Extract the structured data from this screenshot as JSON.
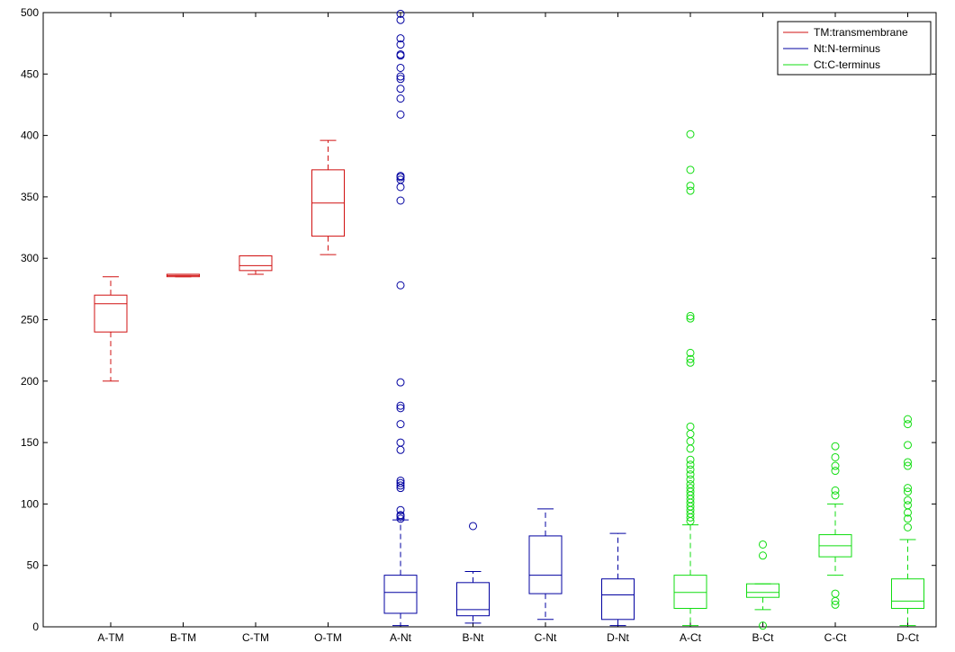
{
  "chart_data": {
    "type": "boxplot",
    "title": "",
    "xlabel": "",
    "ylabel": "",
    "ylim": [
      0,
      500
    ],
    "yticks": [
      0,
      50,
      100,
      150,
      200,
      250,
      300,
      350,
      400,
      450,
      500
    ],
    "grid": false,
    "legend_position": "top-right",
    "legend": [
      {
        "label": "TM:transmembrane",
        "color": "#d01010"
      },
      {
        "label": "Nt:N-terminus",
        "color": "#0000a0"
      },
      {
        "label": "Ct:C-terminus",
        "color": "#10dd10"
      }
    ],
    "categories": [
      "A-TM",
      "B-TM",
      "C-TM",
      "O-TM",
      "A-Nt",
      "B-Nt",
      "C-Nt",
      "D-Nt",
      "A-Ct",
      "B-Ct",
      "C-Ct",
      "D-Ct"
    ],
    "boxes": [
      {
        "group": "TM",
        "color": "#d01010",
        "whisker_low": 200,
        "q1": 240,
        "median": 263,
        "q3": 270,
        "whisker_high": 285,
        "outliers": []
      },
      {
        "group": "TM",
        "color": "#d01010",
        "whisker_low": 285,
        "q1": 285,
        "median": 286,
        "q3": 287,
        "whisker_high": 287,
        "outliers": []
      },
      {
        "group": "TM",
        "color": "#d01010",
        "whisker_low": 287,
        "q1": 290,
        "median": 294,
        "q3": 302,
        "whisker_high": 302,
        "outliers": []
      },
      {
        "group": "TM",
        "color": "#d01010",
        "whisker_low": 303,
        "q1": 318,
        "median": 345,
        "q3": 372,
        "whisker_high": 396,
        "outliers": []
      },
      {
        "group": "Nt",
        "color": "#0000a0",
        "whisker_low": 1,
        "q1": 11,
        "median": 28,
        "q3": 42,
        "whisker_high": 87,
        "outliers": [
          88,
          90,
          91,
          95,
          113,
          115,
          117,
          119,
          144,
          150,
          165,
          178,
          180,
          199,
          278,
          347,
          358,
          364,
          366,
          367,
          417,
          430,
          438,
          446,
          448,
          455,
          465,
          466,
          474,
          479,
          494,
          499
        ]
      },
      {
        "group": "Nt",
        "color": "#0000a0",
        "whisker_low": 3,
        "q1": 9,
        "median": 14,
        "q3": 36,
        "whisker_high": 45,
        "outliers": [
          82
        ]
      },
      {
        "group": "Nt",
        "color": "#0000a0",
        "whisker_low": 6,
        "q1": 27,
        "median": 42,
        "q3": 74,
        "whisker_high": 96,
        "outliers": []
      },
      {
        "group": "Nt",
        "color": "#0000a0",
        "whisker_low": 1,
        "q1": 6,
        "median": 26,
        "q3": 39,
        "whisker_high": 76,
        "outliers": []
      },
      {
        "group": "Ct",
        "color": "#10dd10",
        "whisker_low": 1,
        "q1": 15,
        "median": 28,
        "q3": 42,
        "whisker_high": 83,
        "outliers": [
          86,
          89,
          92,
          95,
          98,
          101,
          104,
          107,
          110,
          113,
          116,
          120,
          124,
          128,
          132,
          136,
          145,
          151,
          157,
          163,
          215,
          218,
          223,
          251,
          253,
          355,
          359,
          372,
          401
        ]
      },
      {
        "group": "Ct",
        "color": "#10dd10",
        "whisker_low": 14,
        "q1": 24,
        "median": 28,
        "q3": 35,
        "whisker_high": 35,
        "outliers": [
          1,
          58,
          67
        ]
      },
      {
        "group": "Ct",
        "color": "#10dd10",
        "whisker_low": 42,
        "q1": 57,
        "median": 66,
        "q3": 75,
        "whisker_high": 100,
        "outliers": [
          18,
          21,
          27,
          107,
          111,
          127,
          131,
          138,
          147
        ]
      },
      {
        "group": "Ct",
        "color": "#10dd10",
        "whisker_low": 1,
        "q1": 15,
        "median": 21,
        "q3": 39,
        "whisker_high": 71,
        "outliers": [
          81,
          88,
          93,
          99,
          103,
          110,
          113,
          131,
          134,
          148,
          165,
          169
        ]
      }
    ]
  }
}
